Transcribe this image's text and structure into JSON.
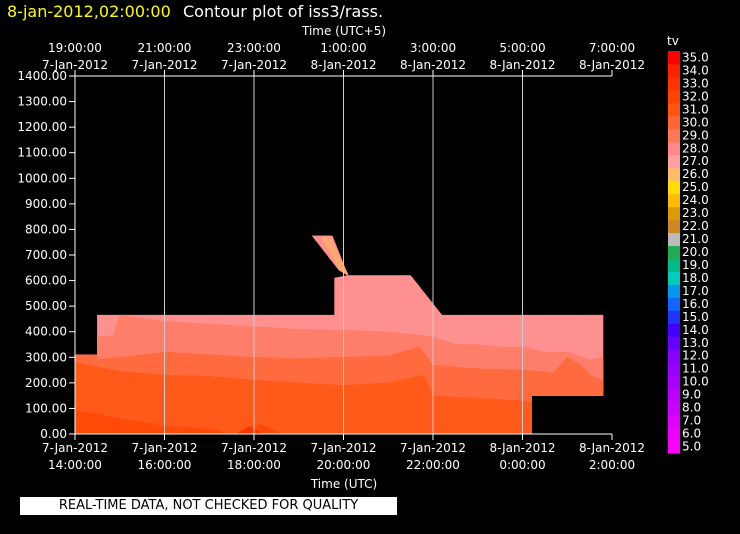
{
  "chart_data": {
    "type": "heatmap",
    "header_datetime": "8-jan-2012,02:00:00",
    "title": "Contour plot of iss3/rass.",
    "top_axis_label": "Time (UTC+5)",
    "bottom_axis_label": "Time (UTC)",
    "top_ticks": [
      {
        "time": "19:00:00",
        "date": "7-Jan-2012"
      },
      {
        "time": "21:00:00",
        "date": "7-Jan-2012"
      },
      {
        "time": "23:00:00",
        "date": "7-Jan-2012"
      },
      {
        "time": "1:00:00",
        "date": "8-Jan-2012"
      },
      {
        "time": "3:00:00",
        "date": "8-Jan-2012"
      },
      {
        "time": "5:00:00",
        "date": "8-Jan-2012"
      },
      {
        "time": "7:00:00",
        "date": "8-Jan-2012"
      }
    ],
    "bottom_ticks": [
      {
        "date": "7-Jan-2012",
        "time": "14:00:00"
      },
      {
        "date": "7-Jan-2012",
        "time": "16:00:00"
      },
      {
        "date": "7-Jan-2012",
        "time": "18:00:00"
      },
      {
        "date": "7-Jan-2012",
        "time": "20:00:00"
      },
      {
        "date": "7-Jan-2012",
        "time": "22:00:00"
      },
      {
        "date": "8-Jan-2012",
        "time": "0:00:00"
      },
      {
        "date": "8-Jan-2012",
        "time": "2:00:00"
      }
    ],
    "x_range_utc_hours": [
      14,
      26
    ],
    "y_range": [
      0,
      1400
    ],
    "y_ticks": [
      "0.00",
      "100.00",
      "200.00",
      "300.00",
      "400.00",
      "500.00",
      "600.00",
      "700.00",
      "800.00",
      "900.00",
      "1000.00",
      "1100.00",
      "1200.00",
      "1300.00",
      "1400.00"
    ],
    "vertical_grid": true,
    "colorbar": {
      "label": "tv",
      "levels": [
        "5.0",
        "6.0",
        "7.0",
        "8.0",
        "9.0",
        "10.0",
        "11.0",
        "12.0",
        "13.0",
        "14.0",
        "15.0",
        "16.0",
        "17.0",
        "18.0",
        "19.0",
        "20.0",
        "21.0",
        "22.0",
        "23.0",
        "24.0",
        "25.0",
        "26.0",
        "27.0",
        "28.0",
        "29.0",
        "30.0",
        "31.0",
        "32.0",
        "33.0",
        "34.0",
        "35.0"
      ],
      "colors": [
        "#ff00ff",
        "#ee00ff",
        "#dd00ff",
        "#cc00ff",
        "#bb00ff",
        "#aa00ff",
        "#9900ff",
        "#8800ff",
        "#6600ff",
        "#4400ff",
        "#2233ff",
        "#1166ff",
        "#0099ee",
        "#00ccbb",
        "#00bb88",
        "#22aa55",
        "#bbbbbb",
        "#cc8822",
        "#dd9900",
        "#ffbb00",
        "#ffdd00",
        "#ffbb66",
        "#ffa0a0",
        "#ff8888",
        "#ff7755",
        "#ff6633",
        "#ff5511",
        "#ff4400",
        "#ff3300",
        "#ff2200",
        "#ff0000"
      ]
    },
    "regions": [
      {
        "level": 27,
        "color": "#ff9090",
        "points": [
          [
            14,
            0
          ],
          [
            14,
            310
          ],
          [
            14.5,
            310
          ],
          [
            14.5,
            465
          ],
          [
            19.8,
            465
          ],
          [
            19.8,
            610
          ],
          [
            20.1,
            620
          ],
          [
            21.5,
            620
          ],
          [
            22.2,
            465
          ],
          [
            25.8,
            465
          ],
          [
            25.8,
            150
          ],
          [
            24.2,
            150
          ],
          [
            24.2,
            0
          ]
        ]
      },
      {
        "level": 27,
        "color": "#ff9090",
        "points": [
          [
            19.3,
            775
          ],
          [
            19.75,
            775
          ],
          [
            20.1,
            620
          ],
          [
            19.9,
            640
          ]
        ]
      },
      {
        "level": 25,
        "color": "#ffa870",
        "points": [
          [
            19.5,
            770
          ],
          [
            19.7,
            770
          ],
          [
            20.1,
            625
          ],
          [
            19.9,
            645
          ]
        ]
      },
      {
        "level": 28,
        "color": "#ff7e6a",
        "points": [
          [
            14,
            0
          ],
          [
            14,
            310
          ],
          [
            14.5,
            310
          ],
          [
            14.5,
            380
          ],
          [
            14.85,
            385
          ],
          [
            15,
            465
          ],
          [
            16,
            440
          ],
          [
            17,
            430
          ],
          [
            18,
            420
          ],
          [
            19,
            410
          ],
          [
            20,
            405
          ],
          [
            21,
            400
          ],
          [
            22,
            380
          ],
          [
            22.5,
            350
          ],
          [
            23,
            350
          ],
          [
            23.5,
            340
          ],
          [
            24,
            340
          ],
          [
            24.5,
            320
          ],
          [
            25,
            320
          ],
          [
            25.5,
            290
          ],
          [
            25.8,
            300
          ],
          [
            25.8,
            150
          ],
          [
            24.2,
            150
          ],
          [
            24.2,
            0
          ]
        ]
      },
      {
        "level": 29,
        "color": "#ff6a3e",
        "points": [
          [
            14,
            0
          ],
          [
            14,
            310
          ],
          [
            14.5,
            310
          ],
          [
            14.5,
            290
          ],
          [
            15,
            300
          ],
          [
            16,
            320
          ],
          [
            17,
            310
          ],
          [
            18,
            300
          ],
          [
            19,
            295
          ],
          [
            20,
            300
          ],
          [
            21,
            305
          ],
          [
            21.7,
            340
          ],
          [
            22,
            270
          ],
          [
            23,
            255
          ],
          [
            24,
            250
          ],
          [
            24.7,
            240
          ],
          [
            25,
            300
          ],
          [
            25.3,
            270
          ],
          [
            25.5,
            230
          ],
          [
            25.8,
            210
          ],
          [
            25.8,
            150
          ],
          [
            24.2,
            150
          ],
          [
            24.2,
            0
          ]
        ]
      },
      {
        "level": 30,
        "color": "#ff5a1a",
        "points": [
          [
            14,
            0
          ],
          [
            14,
            280
          ],
          [
            15,
            245
          ],
          [
            16,
            230
          ],
          [
            17,
            225
          ],
          [
            18,
            210
          ],
          [
            19,
            200
          ],
          [
            20,
            190
          ],
          [
            21,
            200
          ],
          [
            21.8,
            230
          ],
          [
            22,
            150
          ],
          [
            23,
            140
          ],
          [
            24,
            130
          ],
          [
            24.2,
            125
          ],
          [
            24.2,
            0
          ]
        ]
      },
      {
        "level": 31,
        "color": "#ff4a08",
        "points": [
          [
            14,
            0
          ],
          [
            14,
            90
          ],
          [
            14.5,
            80
          ],
          [
            15,
            60
          ],
          [
            16,
            30
          ],
          [
            17,
            20
          ],
          [
            17.5,
            0
          ]
        ]
      },
      {
        "level": 31,
        "color": "#ff4a08",
        "points": [
          [
            18,
            0
          ],
          [
            18.1,
            40
          ],
          [
            18.4,
            20
          ],
          [
            18.6,
            0
          ]
        ]
      },
      {
        "level": 32,
        "color": "#ff3300",
        "points": [
          [
            17.6,
            0
          ],
          [
            17.9,
            30
          ],
          [
            18.2,
            0
          ]
        ]
      }
    ]
  },
  "footer": {
    "quality_note": "REAL-TIME DATA, NOT CHECKED FOR QUALITY"
  }
}
